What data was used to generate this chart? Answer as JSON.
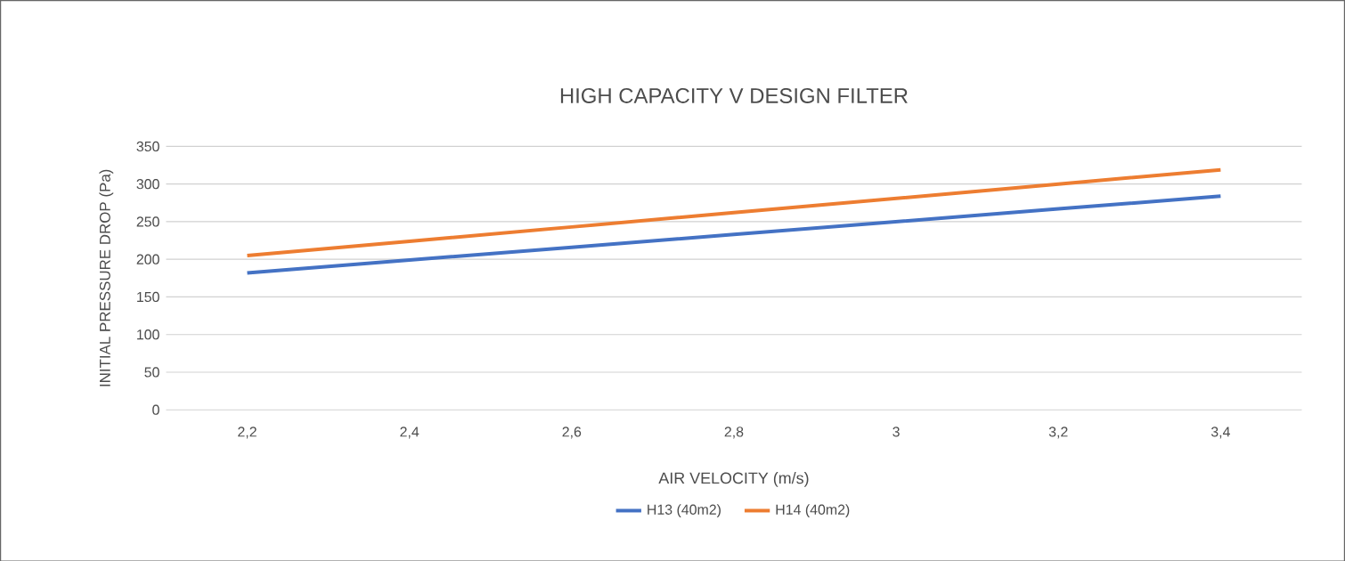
{
  "chart_data": {
    "type": "line",
    "title": "HIGH CAPACITY V DESIGN FILTER",
    "xlabel": "AIR VELOCITY (m/s)",
    "ylabel": "INITIAL PRESSURE DROP (Pa)",
    "categories": [
      "2,2",
      "2,4",
      "2,6",
      "2,8",
      "3",
      "3,2",
      "3,4"
    ],
    "series": [
      {
        "name": "H13 (40m2)",
        "color": "#4472c4",
        "values": [
          182,
          199,
          216,
          233,
          250,
          267,
          284
        ]
      },
      {
        "name": "H14 (40m2)",
        "color": "#ed7d31",
        "values": [
          205,
          224,
          243,
          262,
          281,
          300,
          319
        ]
      }
    ],
    "ylim": [
      0,
      350
    ],
    "yticks": [
      0,
      50,
      100,
      150,
      200,
      250,
      300,
      350
    ],
    "grid": "y",
    "legend": "bottom",
    "marker": "none",
    "line_style": "solid"
  }
}
